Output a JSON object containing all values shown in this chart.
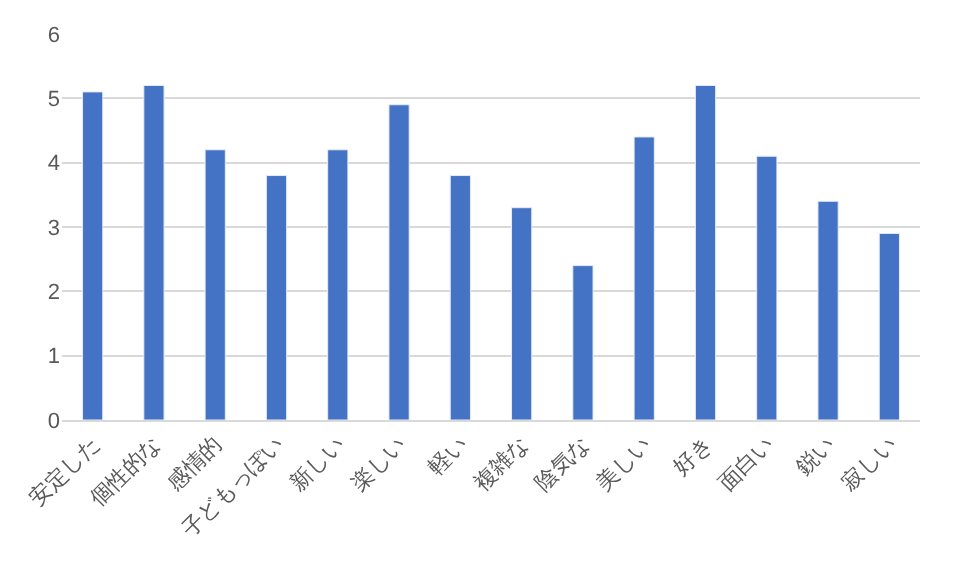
{
  "chart_data": {
    "type": "bar",
    "categories": [
      "安定した",
      "個性的な",
      "感情的",
      "子どもっぽい",
      "新しい",
      "楽しい",
      "軽い",
      "複雑な",
      "陰気な",
      "美しい",
      "好き",
      "面白い",
      "鋭い",
      "寂しい"
    ],
    "values": [
      5.1,
      5.2,
      4.2,
      3.8,
      4.2,
      4.9,
      3.8,
      3.3,
      2.4,
      4.4,
      5.2,
      4.1,
      3.4,
      2.9
    ],
    "color": "#4472c4",
    "ylim": [
      0,
      6
    ],
    "yticks": [
      0,
      1,
      2,
      3,
      4,
      5,
      6
    ],
    "grid": "y",
    "legend": false
  }
}
